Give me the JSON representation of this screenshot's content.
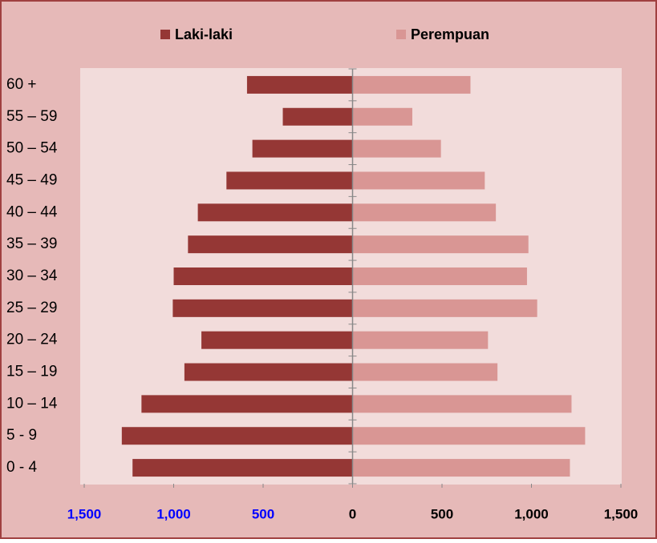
{
  "chart_data": {
    "type": "pyramid",
    "categories": [
      "0  -  4",
      "5 - 9",
      "10 – 14",
      "15 – 19",
      "20 – 24",
      "25 – 29",
      "30 – 34",
      "35 – 39",
      "40 – 44",
      "45 – 49",
      "50 – 54",
      "55 – 59",
      "60 +"
    ],
    "series": [
      {
        "name": "Laki-laki",
        "color": "#953735",
        "side": "left",
        "values": [
          1230,
          1290,
          1180,
          940,
          845,
          1005,
          1000,
          920,
          865,
          705,
          560,
          390,
          590
        ]
      },
      {
        "name": "Perempuan",
        "color": "#d99694",
        "side": "right",
        "values": [
          1215,
          1300,
          1224,
          810,
          757,
          1032,
          975,
          983,
          801,
          739,
          494,
          334,
          659
        ]
      }
    ],
    "xlim": [
      -1500,
      1500
    ],
    "xticks": [
      {
        "value": -1500,
        "label": "1,500"
      },
      {
        "value": -1000,
        "label": "1,000"
      },
      {
        "value": -500,
        "label": "500"
      },
      0,
      500,
      {
        "value": 1000,
        "label": "1,000"
      },
      {
        "value": 1500,
        "label": "1,500"
      }
    ],
    "negative_tick_color": "#0000ff",
    "legend": "top"
  }
}
